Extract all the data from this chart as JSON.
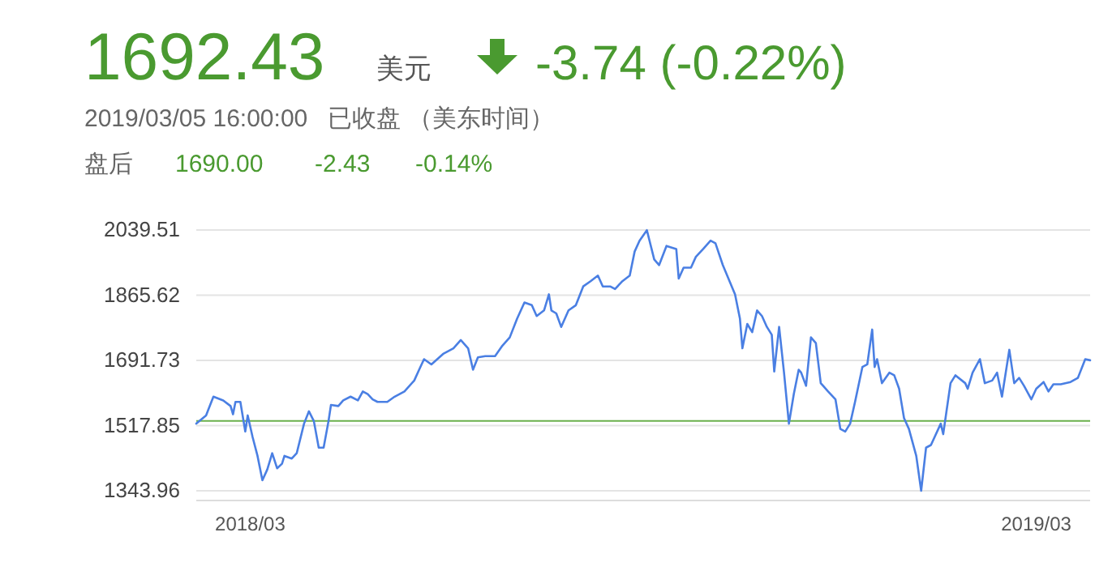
{
  "chart_data": {
    "type": "line",
    "title": "1692.43",
    "annotations": [
      "美元",
      "-3.74 (-0.22%)",
      "2019/03/05 16:00:00   已收盘 （美东时间）",
      "盘后",
      "1690.00",
      "-2.43",
      "-0.14%"
    ],
    "series": [
      {
        "color": "#4a7fe3",
        "x": [
          "2018-03-05",
          "2018-03-09",
          "2018-03-12",
          "2018-03-16",
          "2018-03-19",
          "2018-03-20",
          "2018-03-21",
          "2018-03-23",
          "2018-03-25",
          "2018-03-26",
          "2018-03-28",
          "2018-03-30",
          "2018-04-01",
          "2018-04-03",
          "2018-04-05",
          "2018-04-07",
          "2018-04-09",
          "2018-04-10",
          "2018-04-13",
          "2018-04-15",
          "2018-04-18",
          "2018-04-20",
          "2018-04-22",
          "2018-04-24",
          "2018-04-26",
          "2018-04-28",
          "2018-04-29",
          "2018-05-02",
          "2018-05-04",
          "2018-05-07",
          "2018-05-10",
          "2018-05-12",
          "2018-05-14",
          "2018-05-16",
          "2018-05-18",
          "2018-05-22",
          "2018-05-25",
          "2018-05-29",
          "2018-06-02",
          "2018-06-04",
          "2018-06-06",
          "2018-06-09",
          "2018-06-14",
          "2018-06-18",
          "2018-06-21",
          "2018-06-24",
          "2018-06-26",
          "2018-06-28",
          "2018-07-01",
          "2018-07-05",
          "2018-07-08",
          "2018-07-11",
          "2018-07-14",
          "2018-07-17",
          "2018-07-20",
          "2018-07-22",
          "2018-07-25",
          "2018-07-27",
          "2018-07-28",
          "2018-07-30",
          "2018-08-01",
          "2018-08-04",
          "2018-08-07",
          "2018-08-10",
          "2018-08-13",
          "2018-08-16",
          "2018-08-18",
          "2018-08-21",
          "2018-08-23",
          "2018-08-26",
          "2018-08-29",
          "2018-08-31",
          "2018-09-02",
          "2018-09-05",
          "2018-09-08",
          "2018-09-10",
          "2018-09-13",
          "2018-09-17",
          "2018-09-18",
          "2018-09-20",
          "2018-09-23",
          "2018-09-25",
          "2018-09-28",
          "2018-10-01",
          "2018-10-03",
          "2018-10-06",
          "2018-10-11",
          "2018-10-13",
          "2018-10-14",
          "2018-10-16",
          "2018-10-18",
          "2018-10-20",
          "2018-10-22",
          "2018-10-24",
          "2018-10-26",
          "2018-10-27",
          "2018-10-29",
          "2018-10-31",
          "2018-11-02",
          "2018-11-04",
          "2018-11-06",
          "2018-11-07",
          "2018-11-09",
          "2018-11-11",
          "2018-11-13",
          "2018-11-15",
          "2018-11-18",
          "2018-11-21",
          "2018-11-23",
          "2018-11-25",
          "2018-11-27",
          "2018-11-29",
          "2018-12-02",
          "2018-12-04",
          "2018-12-06",
          "2018-12-07",
          "2018-12-08",
          "2018-12-10",
          "2018-12-13",
          "2018-12-15",
          "2018-12-17",
          "2018-12-19",
          "2018-12-21",
          "2018-12-24",
          "2018-12-26",
          "2018-12-28",
          "2018-12-30",
          "2019-01-03",
          "2019-01-04",
          "2019-01-07",
          "2019-01-09",
          "2019-01-13",
          "2019-01-14",
          "2019-01-16",
          "2019-01-19",
          "2019-01-21",
          "2019-01-24",
          "2019-01-26",
          "2019-01-28",
          "2019-01-31",
          "2019-02-02",
          "2019-02-04",
          "2019-02-06",
          "2019-02-09",
          "2019-02-11",
          "2019-02-14",
          "2019-02-16",
          "2019-02-18",
          "2019-02-21",
          "2019-02-25",
          "2019-02-28",
          "2019-03-03",
          "2019-03-05"
        ],
        "values": [
          1523,
          1545,
          1595,
          1585,
          1570,
          1548,
          1581,
          1581,
          1502,
          1545,
          1487,
          1437,
          1372,
          1401,
          1444,
          1404,
          1416,
          1437,
          1430,
          1444,
          1523,
          1556,
          1530,
          1459,
          1459,
          1530,
          1573,
          1570,
          1585,
          1595,
          1585,
          1609,
          1602,
          1588,
          1581,
          1581,
          1595,
          1609,
          1638,
          1667,
          1695,
          1681,
          1710,
          1724,
          1746,
          1724,
          1667,
          1700,
          1703,
          1703,
          1731,
          1753,
          1803,
          1846,
          1839,
          1810,
          1825,
          1868,
          1825,
          1817,
          1781,
          1825,
          1839,
          1889,
          1903,
          1918,
          1889,
          1889,
          1882,
          1903,
          1918,
          1982,
          2011,
          2039,
          1961,
          1946,
          1997,
          1989,
          1910,
          1939,
          1939,
          1968,
          1989,
          2011,
          2004,
          1946,
          1868,
          1803,
          1724,
          1789,
          1767,
          1825,
          1810,
          1781,
          1760,
          1662,
          1781,
          1659,
          1523,
          1602,
          1667,
          1659,
          1624,
          1753,
          1738,
          1631,
          1609,
          1588,
          1509,
          1502,
          1523,
          1581,
          1674,
          1681,
          1774,
          1674,
          1695,
          1631,
          1659,
          1652,
          1616,
          1538,
          1509,
          1437,
          1344,
          1459,
          1466,
          1523,
          1495,
          1631,
          1652,
          1631,
          1616,
          1659,
          1695,
          1631,
          1638,
          1659,
          1595,
          1720,
          1631,
          1645,
          1624,
          1588,
          1616,
          1634,
          1609,
          1628,
          1628,
          1634,
          1645,
          1695,
          1692
        ]
      }
    ],
    "xlim": [
      "2018-03-05",
      "2019-03-05"
    ],
    "xticks": [
      {
        "value": "2018-03-27",
        "label": "2018/03"
      },
      {
        "value": "2019-02-11",
        "label": "2019/03"
      }
    ],
    "ylim": [
      1343.96,
      2039.51
    ],
    "yticks": [
      1343.96,
      1517.85,
      1691.73,
      1865.62,
      2039.51
    ],
    "grid": "y",
    "ref_lines": [
      {
        "axis": "y",
        "value": 1530,
        "color": "#6ab04c"
      }
    ]
  }
}
